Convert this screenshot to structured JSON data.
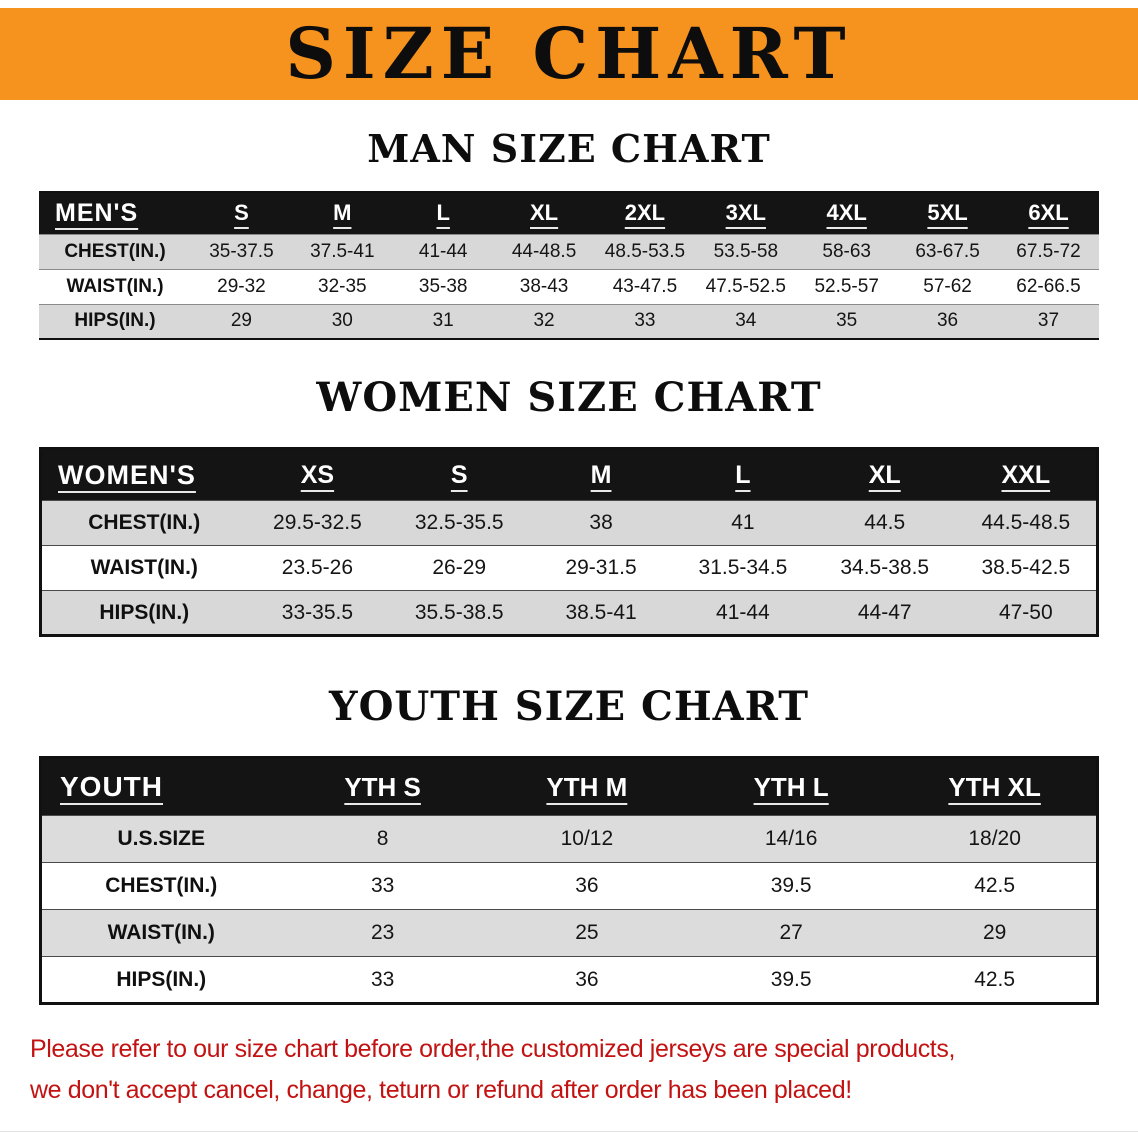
{
  "banner": {
    "title": "SIZE CHART",
    "bg_color": "#f6921e"
  },
  "sections": {
    "man": {
      "heading": "MAN SIZE CHART",
      "table": {
        "header": [
          "MEN'S",
          "S",
          "M",
          "L",
          "XL",
          "2XL",
          "3XL",
          "4XL",
          "5XL",
          "6XL"
        ],
        "rows": [
          [
            "CHEST(IN.)",
            "35-37.5",
            "37.5-41",
            "41-44",
            "44-48.5",
            "48.5-53.5",
            "53.5-58",
            "58-63",
            "63-67.5",
            "67.5-72"
          ],
          [
            "WAIST(IN.)",
            "29-32",
            "32-35",
            "35-38",
            "38-43",
            "43-47.5",
            "47.5-52.5",
            "52.5-57",
            "57-62",
            "62-66.5"
          ],
          [
            "HIPS(IN.)",
            "29",
            "30",
            "31",
            "32",
            "33",
            "34",
            "35",
            "36",
            "37"
          ]
        ]
      }
    },
    "women": {
      "heading": "WOMEN SIZE CHART",
      "table": {
        "header": [
          "WOMEN'S",
          "XS",
          "S",
          "M",
          "L",
          "XL",
          "XXL"
        ],
        "rows": [
          [
            "CHEST(IN.)",
            "29.5-32.5",
            "32.5-35.5",
            "38",
            "41",
            "44.5",
            "44.5-48.5"
          ],
          [
            "WAIST(IN.)",
            "23.5-26",
            "26-29",
            "29-31.5",
            "31.5-34.5",
            "34.5-38.5",
            "38.5-42.5"
          ],
          [
            "HIPS(IN.)",
            "33-35.5",
            "35.5-38.5",
            "38.5-41",
            "41-44",
            "44-47",
            "47-50"
          ]
        ]
      }
    },
    "youth": {
      "heading": "YOUTH SIZE CHART",
      "table": {
        "header": [
          "YOUTH",
          "YTH S",
          "YTH M",
          "YTH L",
          "YTH XL"
        ],
        "rows": [
          [
            "U.S.SIZE",
            "8",
            "10/12",
            "14/16",
            "18/20"
          ],
          [
            "CHEST(IN.)",
            "33",
            "36",
            "39.5",
            "42.5"
          ],
          [
            "WAIST(IN.)",
            "23",
            "25",
            "27",
            "29"
          ],
          [
            "HIPS(IN.)",
            "33",
            "36",
            "39.5",
            "42.5"
          ]
        ]
      }
    }
  },
  "disclaimer": {
    "line1": "Please refer to our size chart before order,the customized jerseys are special products,",
    "line2": "we don't accept cancel, change, teturn or refund after order has been placed!"
  },
  "colors": {
    "banner_orange": "#f6921e",
    "table_header_black": "#141414",
    "row_gray": "#d8d8d8",
    "disclaimer_red": "#c31212"
  }
}
